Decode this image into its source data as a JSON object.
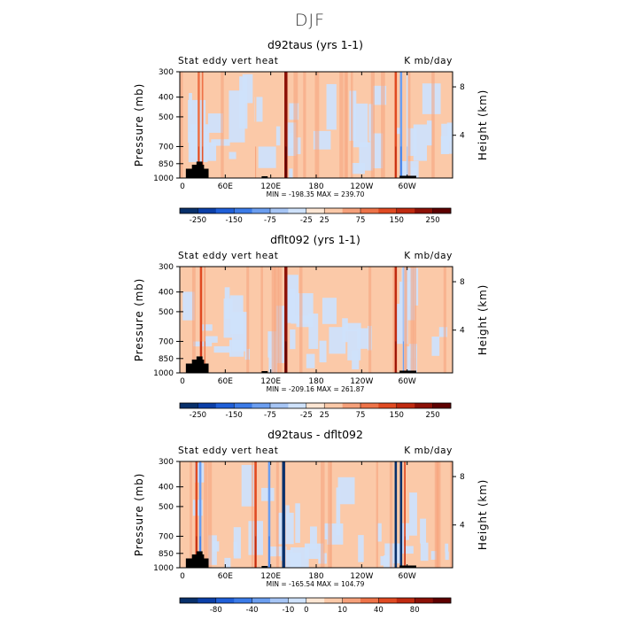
{
  "figure_title": "DJF",
  "colors": {
    "levels": [
      "#08306b",
      "#0b3fa8",
      "#1f5fd8",
      "#3b7be8",
      "#6b9ef0",
      "#a6c5f5",
      "#cfe2fb",
      "#fde6d3",
      "#fbc9a8",
      "#f5a07a",
      "#ee7348",
      "#e04a22",
      "#c02a10",
      "#8c1006",
      "#5e0000"
    ],
    "terrain": "#000000"
  },
  "chart_data": [
    {
      "type": "heatmap",
      "title": "d92taus (yrs 1-1)",
      "left_label": "Stat eddy vert heat",
      "right_label": "K mb/day",
      "ylabel": "Pressure (mb)",
      "ylabel_right": "Height (km)",
      "y_ticks": [
        "300",
        "400",
        "500",
        "700",
        "850",
        "1000"
      ],
      "y_tick_values": [
        300,
        400,
        500,
        700,
        850,
        1000
      ],
      "height_ticks": [
        "8",
        "4"
      ],
      "x_ticks": [
        "0",
        "60E",
        "120E",
        "180",
        "120W",
        "60W"
      ],
      "x_tick_values": [
        0,
        60,
        120,
        180,
        240,
        300
      ],
      "xlim": [
        0,
        360
      ],
      "ylim": [
        1000,
        300
      ],
      "min_text": "MIN = -198.35",
      "max_text": "MAX = 239.70",
      "colorbar_labels": [
        "-250",
        "-150",
        "-75",
        "-25",
        "25",
        "75",
        "150",
        "250"
      ],
      "colorbar_label_levels": [
        1,
        3,
        5,
        7,
        8,
        10,
        12,
        14
      ],
      "features": [
        {
          "lon": 25,
          "width": 3,
          "value": 120
        },
        {
          "lon": 30,
          "width": 2,
          "value": 90
        },
        {
          "lon": 100,
          "width": 2,
          "value": 40
        },
        {
          "lon": 140,
          "width": 4,
          "value": 200
        },
        {
          "lon": 285,
          "width": 3,
          "value": 160
        },
        {
          "lon": 292,
          "width": 3,
          "value": -100
        },
        {
          "lon": 300,
          "width": 2,
          "value": -40
        }
      ]
    },
    {
      "type": "heatmap",
      "title": "dflt092 (yrs 1-1)",
      "left_label": "Stat eddy vert heat",
      "right_label": "K mb/day",
      "ylabel": "Pressure (mb)",
      "ylabel_right": "Height (km)",
      "y_ticks": [
        "300",
        "400",
        "500",
        "700",
        "850",
        "1000"
      ],
      "y_tick_values": [
        300,
        400,
        500,
        700,
        850,
        1000
      ],
      "height_ticks": [
        "8",
        "4"
      ],
      "x_ticks": [
        "0",
        "60E",
        "120E",
        "180",
        "120W",
        "60W"
      ],
      "x_tick_values": [
        0,
        60,
        120,
        180,
        240,
        300
      ],
      "xlim": [
        0,
        360
      ],
      "ylim": [
        1000,
        300
      ],
      "min_text": "MIN = -209.16",
      "max_text": "MAX = 261.87",
      "colorbar_labels": [
        "-250",
        "-150",
        "-75",
        "-25",
        "25",
        "75",
        "150",
        "250"
      ],
      "colorbar_label_levels": [
        1,
        3,
        5,
        7,
        8,
        10,
        12,
        14
      ],
      "features": [
        {
          "lon": 28,
          "width": 3,
          "value": 130
        },
        {
          "lon": 33,
          "width": 2,
          "value": 70
        },
        {
          "lon": 140,
          "width": 4,
          "value": 230
        },
        {
          "lon": 285,
          "width": 3,
          "value": 180
        },
        {
          "lon": 295,
          "width": 2,
          "value": -60
        }
      ]
    },
    {
      "type": "heatmap",
      "title": "d92taus - dflt092",
      "left_label": "Stat eddy vert heat",
      "right_label": "K mb/day",
      "ylabel": "Pressure (mb)",
      "ylabel_right": "Height (km)",
      "y_ticks": [
        "300",
        "400",
        "500",
        "700",
        "850",
        "1000"
      ],
      "y_tick_values": [
        300,
        400,
        500,
        700,
        850,
        1000
      ],
      "height_ticks": [
        "8",
        "4"
      ],
      "x_ticks": [
        "0",
        "60E",
        "120E",
        "180",
        "120W",
        "60W"
      ],
      "x_tick_values": [
        0,
        60,
        120,
        180,
        240,
        300
      ],
      "xlim": [
        0,
        360
      ],
      "ylim": [
        1000,
        300
      ],
      "min_text": "MIN = -165.54",
      "max_text": "MAX = 104.79",
      "colorbar_labels": [
        "-80",
        "-40",
        "-10",
        "0",
        "10",
        "40",
        "80"
      ],
      "colorbar_label_levels": [
        2,
        4,
        6,
        7,
        9,
        11,
        13
      ],
      "features": [
        {
          "lon": 22,
          "width": 3,
          "value": 40
        },
        {
          "lon": 27,
          "width": 3,
          "value": -40
        },
        {
          "lon": 100,
          "width": 3,
          "value": 40
        },
        {
          "lon": 118,
          "width": 3,
          "value": -40
        },
        {
          "lon": 137,
          "width": 4,
          "value": -120
        },
        {
          "lon": 285,
          "width": 3,
          "value": -160
        },
        {
          "lon": 292,
          "width": 3,
          "value": -80
        },
        {
          "lon": 297,
          "width": 2,
          "value": 40
        }
      ]
    }
  ]
}
